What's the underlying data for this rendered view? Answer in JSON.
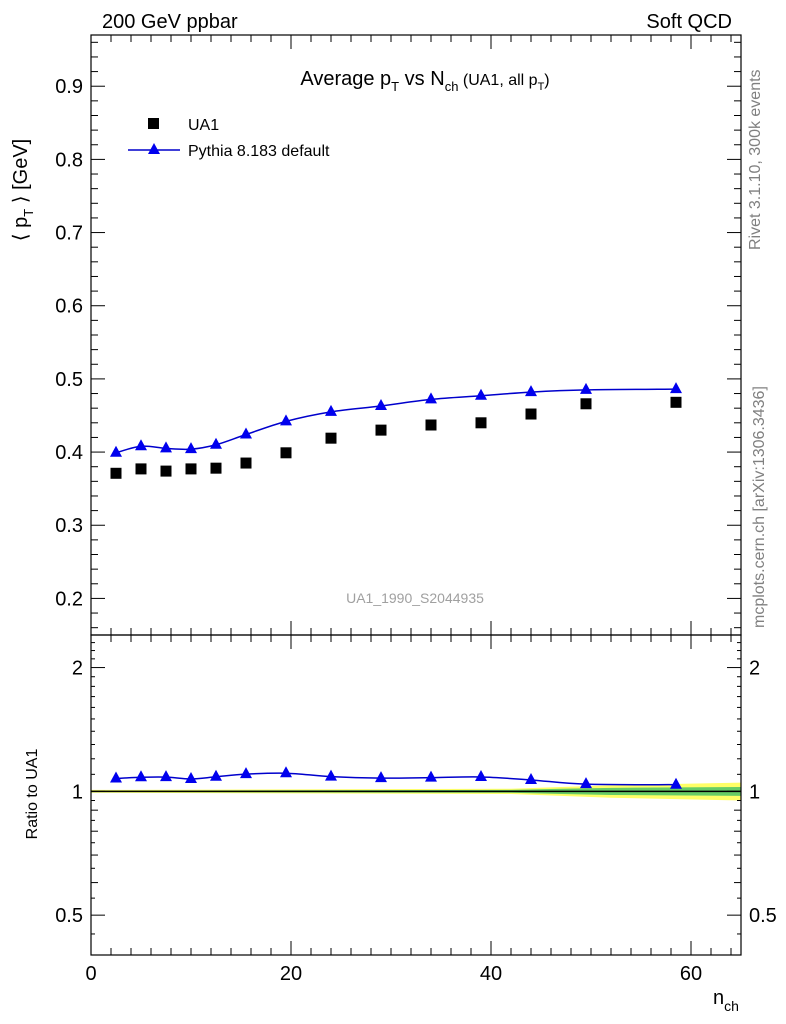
{
  "header": {
    "left": "200 GeV ppbar",
    "right": "Soft QCD"
  },
  "side_labels": {
    "rivet": "Rivet 3.1.10,  300k events",
    "mcplots": "mcplots.cern.ch [arXiv:1306.3436]"
  },
  "chart_data": [
    {
      "type": "scatter",
      "panel": "main",
      "title": {
        "main": "Average p",
        "main_sub": "T",
        "vs": " vs N",
        "vs_sub": "ch",
        "detail": " (UA1, all p",
        "detail_sub": "T",
        "detail_end": ")"
      },
      "ylabel": "⟨ p",
      "ylabel_sub": "T",
      "ylabel_end": " ⟩ [GeV]",
      "xlabel": "n",
      "xlabel_sub": "ch",
      "xlim": [
        0,
        65
      ],
      "ylim": [
        0.15,
        0.97
      ],
      "yticks": [
        0.2,
        0.3,
        0.4,
        0.5,
        0.6,
        0.7,
        0.8,
        0.9
      ],
      "ytick_labels": [
        "0.2",
        "0.3",
        "0.4",
        "0.5",
        "0.6",
        "0.7",
        "0.8",
        "0.9"
      ],
      "watermark": "UA1_1990_S2044935",
      "legend_position": "top-left",
      "series": [
        {
          "name": "UA1",
          "marker": "square",
          "color": "#000000",
          "x": [
            2.5,
            5,
            7.5,
            10,
            12.5,
            15.5,
            19.5,
            24,
            29,
            34,
            39,
            44,
            49.5,
            58.5
          ],
          "y": [
            0.371,
            0.377,
            0.374,
            0.377,
            0.378,
            0.385,
            0.399,
            0.419,
            0.43,
            0.437,
            0.44,
            0.452,
            0.466,
            0.468
          ]
        },
        {
          "name": "Pythia 8.183 default",
          "marker": "triangle",
          "color": "#0000cc",
          "x": [
            2.5,
            5,
            7.5,
            10,
            12.5,
            15.5,
            19.5,
            24,
            29,
            34,
            39,
            44,
            49.5,
            58.5
          ],
          "y": [
            0.399,
            0.408,
            0.405,
            0.404,
            0.41,
            0.424,
            0.442,
            0.455,
            0.463,
            0.472,
            0.477,
            0.482,
            0.485,
            0.486
          ]
        }
      ]
    },
    {
      "type": "line",
      "panel": "ratio",
      "ylabel": "Ratio to UA1",
      "xlabel": "n",
      "xlabel_sub": "ch",
      "xlim": [
        0,
        65
      ],
      "ylim": [
        0.4,
        2.4
      ],
      "scale": "log",
      "yticks": [
        0.5,
        1,
        2
      ],
      "ytick_labels": [
        "0.5",
        "1",
        "2"
      ],
      "xticks": [
        0,
        20,
        40,
        60
      ],
      "xtick_labels": [
        "0",
        "20",
        "40",
        "60"
      ],
      "reference": 1.0,
      "series": [
        {
          "name": "Pythia 8.183 default",
          "color": "#0000cc",
          "x": [
            2.5,
            5,
            7.5,
            10,
            12.5,
            15.5,
            19.5,
            24,
            29,
            34,
            39,
            44,
            49.5,
            58.5
          ],
          "y": [
            1.075,
            1.082,
            1.083,
            1.072,
            1.085,
            1.101,
            1.107,
            1.086,
            1.077,
            1.08,
            1.084,
            1.066,
            1.041,
            1.038
          ]
        }
      ],
      "uncertainty_band": {
        "colors": [
          "#ffff66",
          "#66cc66"
        ],
        "x": [
          0,
          42,
          47,
          52,
          65
        ],
        "inner": [
          0.004,
          0.008,
          0.015,
          0.02,
          0.025
        ],
        "outer": [
          0.008,
          0.015,
          0.025,
          0.035,
          0.05
        ]
      }
    }
  ]
}
